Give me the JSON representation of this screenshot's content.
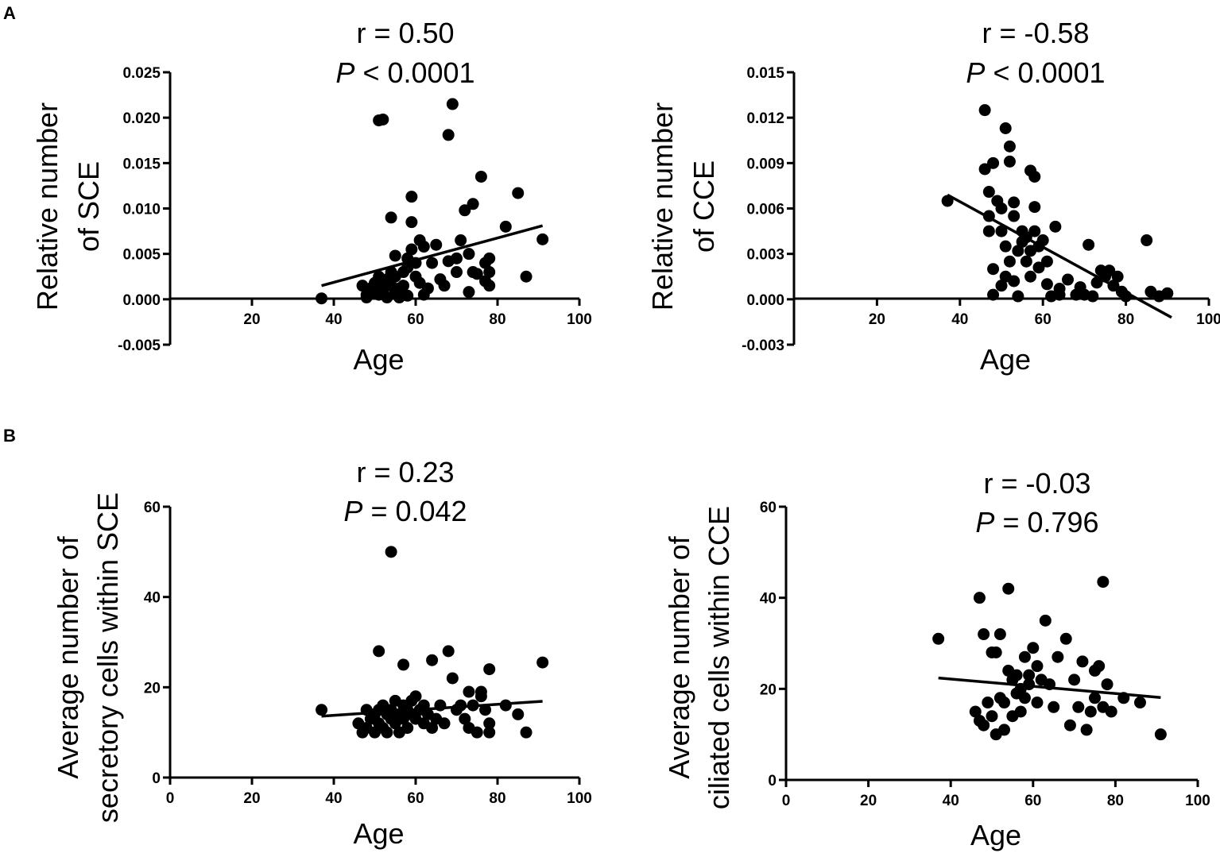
{
  "panel_labels": [
    "A",
    "B"
  ],
  "chart_data": [
    {
      "type": "scatter",
      "panel": "A",
      "xlabel": "Age",
      "ylabel_lines": [
        "Relative number",
        "of SCE"
      ],
      "stat_r": "r = 0.50",
      "stat_p_letter": "P",
      "stat_p_rest": " < 0.0001",
      "xticks": [
        "20",
        "40",
        "60",
        "80",
        "100"
      ],
      "xtick_values": [
        20,
        40,
        60,
        80,
        100
      ],
      "yticks": [
        "-0.005",
        "0.000",
        "0.005",
        "0.010",
        "0.015",
        "0.020",
        "0.025"
      ],
      "ytick_values": [
        -0.005,
        0.0,
        0.005,
        0.01,
        0.015,
        0.02,
        0.025
      ],
      "xlim": [
        0,
        100
      ],
      "ylim": [
        -0.005,
        0.025
      ],
      "fit_line": [
        [
          37,
          0.0015
        ],
        [
          91,
          0.0081
        ]
      ],
      "points": [
        [
          37,
          0.0001
        ],
        [
          47,
          0.0015
        ],
        [
          48,
          0.0005
        ],
        [
          48,
          0.0002
        ],
        [
          49,
          0.0012
        ],
        [
          50,
          0.0018
        ],
        [
          50,
          0.0008
        ],
        [
          51,
          0.0197
        ],
        [
          51,
          0.0025
        ],
        [
          51,
          0.0005
        ],
        [
          52,
          0.0198
        ],
        [
          52,
          0.0015
        ],
        [
          52,
          0.001
        ],
        [
          53,
          0.0022
        ],
        [
          53,
          0.0002
        ],
        [
          54,
          0.009
        ],
        [
          54,
          0.003
        ],
        [
          54,
          0.0015
        ],
        [
          55,
          0.0048
        ],
        [
          55,
          0.0025
        ],
        [
          55,
          0.0008
        ],
        [
          56,
          0.0002
        ],
        [
          56,
          0.0012
        ],
        [
          57,
          0.003
        ],
        [
          57,
          0.0015
        ],
        [
          58,
          0.0045
        ],
        [
          58,
          0.0035
        ],
        [
          58,
          0.0004
        ],
        [
          59,
          0.0113
        ],
        [
          59,
          0.0085
        ],
        [
          59,
          0.0055
        ],
        [
          60,
          0.004
        ],
        [
          60,
          0.0025
        ],
        [
          61,
          0.0065
        ],
        [
          61,
          0.0018
        ],
        [
          62,
          0.0058
        ],
        [
          62,
          0.0005
        ],
        [
          63,
          0.0012
        ],
        [
          64,
          0.004
        ],
        [
          65,
          0.006
        ],
        [
          66,
          0.0022
        ],
        [
          67,
          0.0015
        ],
        [
          68,
          0.0181
        ],
        [
          68,
          0.0042
        ],
        [
          69,
          0.0215
        ],
        [
          70,
          0.003
        ],
        [
          70,
          0.0045
        ],
        [
          71,
          0.0065
        ],
        [
          72,
          0.0098
        ],
        [
          73,
          0.0008
        ],
        [
          73,
          0.005
        ],
        [
          74,
          0.0105
        ],
        [
          74,
          0.003
        ],
        [
          75,
          0.0028
        ],
        [
          76,
          0.0135
        ],
        [
          77,
          0.004
        ],
        [
          77,
          0.002
        ],
        [
          78,
          0.0045
        ],
        [
          78,
          0.0015
        ],
        [
          78,
          0.003
        ],
        [
          82,
          0.008
        ],
        [
          85,
          0.0117
        ],
        [
          87,
          0.0025
        ],
        [
          91,
          0.0066
        ]
      ]
    },
    {
      "type": "scatter",
      "panel": "A",
      "xlabel": "Age",
      "ylabel_lines": [
        "Relative number",
        "of CCE"
      ],
      "stat_r": "r = -0.58",
      "stat_p_letter": "P",
      "stat_p_rest": " < 0.0001",
      "xticks": [
        "20",
        "40",
        "60",
        "80",
        "100"
      ],
      "xtick_values": [
        20,
        40,
        60,
        80,
        100
      ],
      "yticks": [
        "-0.003",
        "0.000",
        "0.003",
        "0.006",
        "0.009",
        "0.012",
        "0.015"
      ],
      "ytick_values": [
        -0.003,
        0.0,
        0.003,
        0.006,
        0.009,
        0.012,
        0.015
      ],
      "xlim": [
        0,
        100
      ],
      "ylim": [
        -0.003,
        0.015
      ],
      "fit_line": [
        [
          37,
          0.0069
        ],
        [
          91,
          -0.0012
        ]
      ],
      "points": [
        [
          37,
          0.0065
        ],
        [
          46,
          0.0125
        ],
        [
          46,
          0.0086
        ],
        [
          47,
          0.0071
        ],
        [
          47,
          0.0055
        ],
        [
          47,
          0.0045
        ],
        [
          48,
          0.009
        ],
        [
          48,
          0.002
        ],
        [
          48,
          0.0003
        ],
        [
          49,
          0.0065
        ],
        [
          50,
          0.006
        ],
        [
          50,
          0.0045
        ],
        [
          50,
          0.0009
        ],
        [
          51,
          0.0113
        ],
        [
          51,
          0.0035
        ],
        [
          51,
          0.0015
        ],
        [
          52,
          0.0101
        ],
        [
          52,
          0.0091
        ],
        [
          52,
          0.0025
        ],
        [
          53,
          0.0064
        ],
        [
          53,
          0.0055
        ],
        [
          53,
          0.0012
        ],
        [
          54,
          0.0032
        ],
        [
          54,
          0.0002
        ],
        [
          55,
          0.0045
        ],
        [
          55,
          0.0038
        ],
        [
          56,
          0.0041
        ],
        [
          56,
          0.0025
        ],
        [
          57,
          0.0085
        ],
        [
          57,
          0.0032
        ],
        [
          57,
          0.0015
        ],
        [
          58,
          0.0081
        ],
        [
          58,
          0.0061
        ],
        [
          58,
          0.0045
        ],
        [
          59,
          0.0035
        ],
        [
          59,
          0.0021
        ],
        [
          60,
          0.0039
        ],
        [
          61,
          0.0025
        ],
        [
          61,
          0.001
        ],
        [
          62,
          0.0002
        ],
        [
          63,
          0.0048
        ],
        [
          64,
          0.0007
        ],
        [
          64,
          0.0003
        ],
        [
          66,
          0.0013
        ],
        [
          68,
          0.0003
        ],
        [
          69,
          0.0008
        ],
        [
          70,
          0.0003
        ],
        [
          71,
          0.0036
        ],
        [
          72,
          0.0002
        ],
        [
          73,
          0.0011
        ],
        [
          74,
          0.0019
        ],
        [
          75,
          0.0015
        ],
        [
          76,
          0.0019
        ],
        [
          77,
          0.0009
        ],
        [
          78,
          0.0015
        ],
        [
          79,
          0.0005
        ],
        [
          80,
          0.0002
        ],
        [
          85,
          0.0039
        ],
        [
          86,
          0.0005
        ],
        [
          88,
          0.0002
        ],
        [
          90,
          0.0004
        ]
      ]
    },
    {
      "type": "scatter",
      "panel": "B",
      "xlabel": "Age",
      "ylabel_lines": [
        "Average number of",
        "secretory cells within SCE"
      ],
      "stat_r": "r = 0.23",
      "stat_p_letter": "P",
      "stat_p_rest": " = 0.042",
      "xticks": [
        "0",
        "20",
        "40",
        "60",
        "80",
        "100"
      ],
      "xtick_values": [
        0,
        20,
        40,
        60,
        80,
        100
      ],
      "yticks": [
        "0",
        "20",
        "40",
        "60"
      ],
      "ytick_values": [
        0,
        20,
        40,
        60
      ],
      "xlim": [
        0,
        100
      ],
      "ylim": [
        0,
        60
      ],
      "fit_line": [
        [
          37,
          13.6
        ],
        [
          91,
          16.9
        ]
      ],
      "points": [
        [
          37,
          15
        ],
        [
          46,
          12
        ],
        [
          47,
          10
        ],
        [
          48,
          15
        ],
        [
          48,
          11
        ],
        [
          49,
          13
        ],
        [
          50,
          10
        ],
        [
          50,
          14
        ],
        [
          51,
          28
        ],
        [
          51,
          15
        ],
        [
          51,
          12
        ],
        [
          52,
          11
        ],
        [
          52,
          16
        ],
        [
          53,
          14
        ],
        [
          53,
          10
        ],
        [
          54,
          50
        ],
        [
          54,
          15
        ],
        [
          54,
          13
        ],
        [
          55,
          12
        ],
        [
          55,
          17
        ],
        [
          56,
          14
        ],
        [
          56,
          10
        ],
        [
          57,
          25
        ],
        [
          57,
          16
        ],
        [
          57,
          13
        ],
        [
          58,
          15
        ],
        [
          58,
          11
        ],
        [
          59,
          17
        ],
        [
          59,
          14
        ],
        [
          60,
          18
        ],
        [
          60,
          13
        ],
        [
          61,
          15
        ],
        [
          62,
          16
        ],
        [
          62,
          12
        ],
        [
          63,
          14
        ],
        [
          64,
          26
        ],
        [
          64,
          11
        ],
        [
          65,
          13
        ],
        [
          66,
          16
        ],
        [
          67,
          12
        ],
        [
          68,
          28
        ],
        [
          69,
          22
        ],
        [
          70,
          15
        ],
        [
          71,
          16
        ],
        [
          72,
          13
        ],
        [
          73,
          19
        ],
        [
          73,
          11
        ],
        [
          74,
          16
        ],
        [
          75,
          10
        ],
        [
          76,
          18
        ],
        [
          76,
          19
        ],
        [
          77,
          15
        ],
        [
          78,
          24
        ],
        [
          78,
          12
        ],
        [
          78,
          10
        ],
        [
          82,
          16
        ],
        [
          85,
          14
        ],
        [
          87,
          10
        ],
        [
          91,
          25.5
        ]
      ]
    },
    {
      "type": "scatter",
      "panel": "B",
      "xlabel": "Age",
      "ylabel_lines": [
        "Average number of",
        "ciliated cells within CCE"
      ],
      "stat_r": "r = -0.03",
      "stat_p_letter": "P",
      "stat_p_rest": " = 0.796",
      "xticks": [
        "0",
        "20",
        "40",
        "60",
        "80",
        "100"
      ],
      "xtick_values": [
        0,
        20,
        40,
        60,
        80,
        100
      ],
      "yticks": [
        "0",
        "20",
        "40",
        "60"
      ],
      "ytick_values": [
        0,
        20,
        40,
        60
      ],
      "xlim": [
        0,
        100
      ],
      "ylim": [
        0,
        60
      ],
      "fit_line": [
        [
          37,
          22.4
        ],
        [
          91,
          18.1
        ]
      ],
      "points": [
        [
          37,
          31
        ],
        [
          46,
          15
        ],
        [
          47,
          13
        ],
        [
          47,
          40
        ],
        [
          48,
          32
        ],
        [
          48,
          12
        ],
        [
          49,
          17
        ],
        [
          50,
          28
        ],
        [
          50,
          14
        ],
        [
          51,
          28
        ],
        [
          51,
          10
        ],
        [
          52,
          32
        ],
        [
          52,
          18
        ],
        [
          53,
          17
        ],
        [
          53,
          11
        ],
        [
          54,
          42
        ],
        [
          54,
          24
        ],
        [
          55,
          22
        ],
        [
          55,
          14
        ],
        [
          56,
          23
        ],
        [
          56,
          19
        ],
        [
          57,
          20
        ],
        [
          57,
          15
        ],
        [
          58,
          27
        ],
        [
          58,
          18
        ],
        [
          59,
          23
        ],
        [
          59,
          21
        ],
        [
          60,
          29
        ],
        [
          61,
          25
        ],
        [
          61,
          17
        ],
        [
          62,
          22
        ],
        [
          63,
          35
        ],
        [
          64,
          21
        ],
        [
          65,
          16
        ],
        [
          66,
          27
        ],
        [
          68,
          31
        ],
        [
          69,
          12
        ],
        [
          70,
          22
        ],
        [
          71,
          16
        ],
        [
          72,
          26
        ],
        [
          73,
          11
        ],
        [
          74,
          15
        ],
        [
          75,
          24
        ],
        [
          75,
          18
        ],
        [
          76,
          25
        ],
        [
          77,
          16
        ],
        [
          77,
          43.5
        ],
        [
          78,
          21
        ],
        [
          79,
          15
        ],
        [
          82,
          18
        ],
        [
          86,
          17
        ],
        [
          91,
          10
        ]
      ]
    }
  ]
}
